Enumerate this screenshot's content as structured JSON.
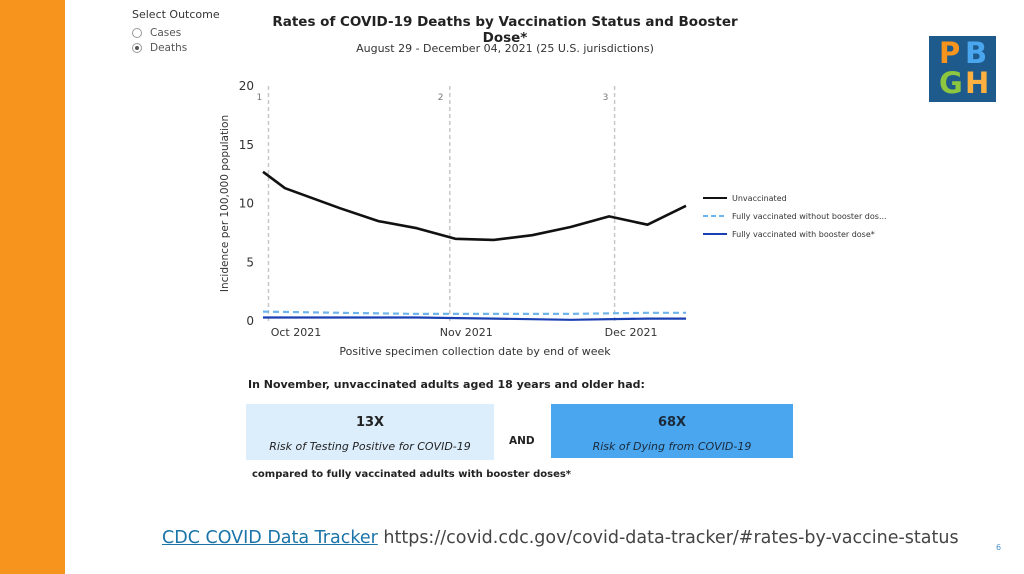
{
  "outcome": {
    "title": "Select Outcome",
    "options": [
      {
        "label": "Cases",
        "selected": false
      },
      {
        "label": "Deaths",
        "selected": true
      }
    ]
  },
  "logo": {
    "letters": [
      "P",
      "B",
      "G",
      "H"
    ],
    "colors": [
      "#f7941d",
      "#4aa6ee",
      "#8dc63f",
      "#fbb040"
    ],
    "background": "#1e5b8c"
  },
  "chart_data": {
    "type": "line",
    "title": "Rates of COVID-19 Deaths by Vaccination Status and Booster Dose*",
    "subtitle": "August 29 - December 04, 2021 (25 U.S. jurisdictions)",
    "xlabel": "Positive specimen collection date by end of week",
    "ylabel": "Incidence per 100,000 population",
    "ylim": [
      0,
      20
    ],
    "yticks": [
      0,
      5,
      10,
      15,
      20
    ],
    "x_dates": [
      "2021-09-25",
      "2021-10-02",
      "2021-10-09",
      "2021-10-16",
      "2021-10-23",
      "2021-10-30",
      "2021-11-06",
      "2021-11-13",
      "2021-11-20",
      "2021-11-27",
      "2021-12-04"
    ],
    "xticks": [
      {
        "label": "Oct 2021",
        "date": "2021-10-01"
      },
      {
        "label": "Nov 2021",
        "date": "2021-11-01"
      },
      {
        "label": "Dec 2021",
        "date": "2021-12-01"
      }
    ],
    "reference_lines": [
      {
        "label": "1",
        "date": "2021-09-26"
      },
      {
        "label": "2",
        "date": "2021-10-29"
      },
      {
        "label": "3",
        "date": "2021-11-28"
      }
    ],
    "series": [
      {
        "name": "Unvaccinated",
        "color": "#111111",
        "style": "solid",
        "points": [
          [
            "2021-09-25",
            12.7
          ],
          [
            "2021-09-29",
            11.3
          ],
          [
            "2021-10-09",
            9.6
          ],
          [
            "2021-10-16",
            8.5
          ],
          [
            "2021-10-23",
            7.9
          ],
          [
            "2021-10-30",
            7.0
          ],
          [
            "2021-11-06",
            6.9
          ],
          [
            "2021-11-13",
            7.3
          ],
          [
            "2021-11-20",
            8.0
          ],
          [
            "2021-11-27",
            8.9
          ],
          [
            "2021-12-04",
            8.2
          ],
          [
            "2021-12-11",
            9.8
          ]
        ]
      },
      {
        "name": "Fully vaccinated without booster dos...",
        "color": "#6fb4ea",
        "style": "dashed",
        "points": [
          [
            "2021-09-25",
            0.8
          ],
          [
            "2021-10-09",
            0.7
          ],
          [
            "2021-10-23",
            0.6
          ],
          [
            "2021-11-06",
            0.6
          ],
          [
            "2021-11-20",
            0.6
          ],
          [
            "2021-12-04",
            0.7
          ],
          [
            "2021-12-11",
            0.7
          ]
        ]
      },
      {
        "name": "Fully vaccinated with booster dose*",
        "color": "#1a3fb3",
        "style": "solid",
        "points": [
          [
            "2021-09-25",
            0.3
          ],
          [
            "2021-10-09",
            0.3
          ],
          [
            "2021-10-23",
            0.3
          ],
          [
            "2021-11-06",
            0.2
          ],
          [
            "2021-11-20",
            0.1
          ],
          [
            "2021-12-04",
            0.2
          ],
          [
            "2021-12-11",
            0.2
          ]
        ]
      }
    ],
    "legend_position": "right",
    "grid": false
  },
  "summary": {
    "heading": "In November, unvaccinated adults aged 18 years and older had:",
    "box1": {
      "value": "13X",
      "label": "Risk of Testing Positive for COVID-19",
      "color": "#dceefb"
    },
    "connector": "AND",
    "box2": {
      "value": "68X",
      "label": "Risk of Dying from COVID-19",
      "color": "#4aa6ee"
    },
    "footnote": "compared to fully vaccinated adults with booster doses*"
  },
  "source": {
    "link_text": "CDC COVID Data Tracker",
    "url_text": "https://covid.cdc.gov/covid-data-tracker/#rates-by-vaccine-status"
  },
  "page_number": "6",
  "colors": {
    "accent_orange": "#f7941d"
  }
}
